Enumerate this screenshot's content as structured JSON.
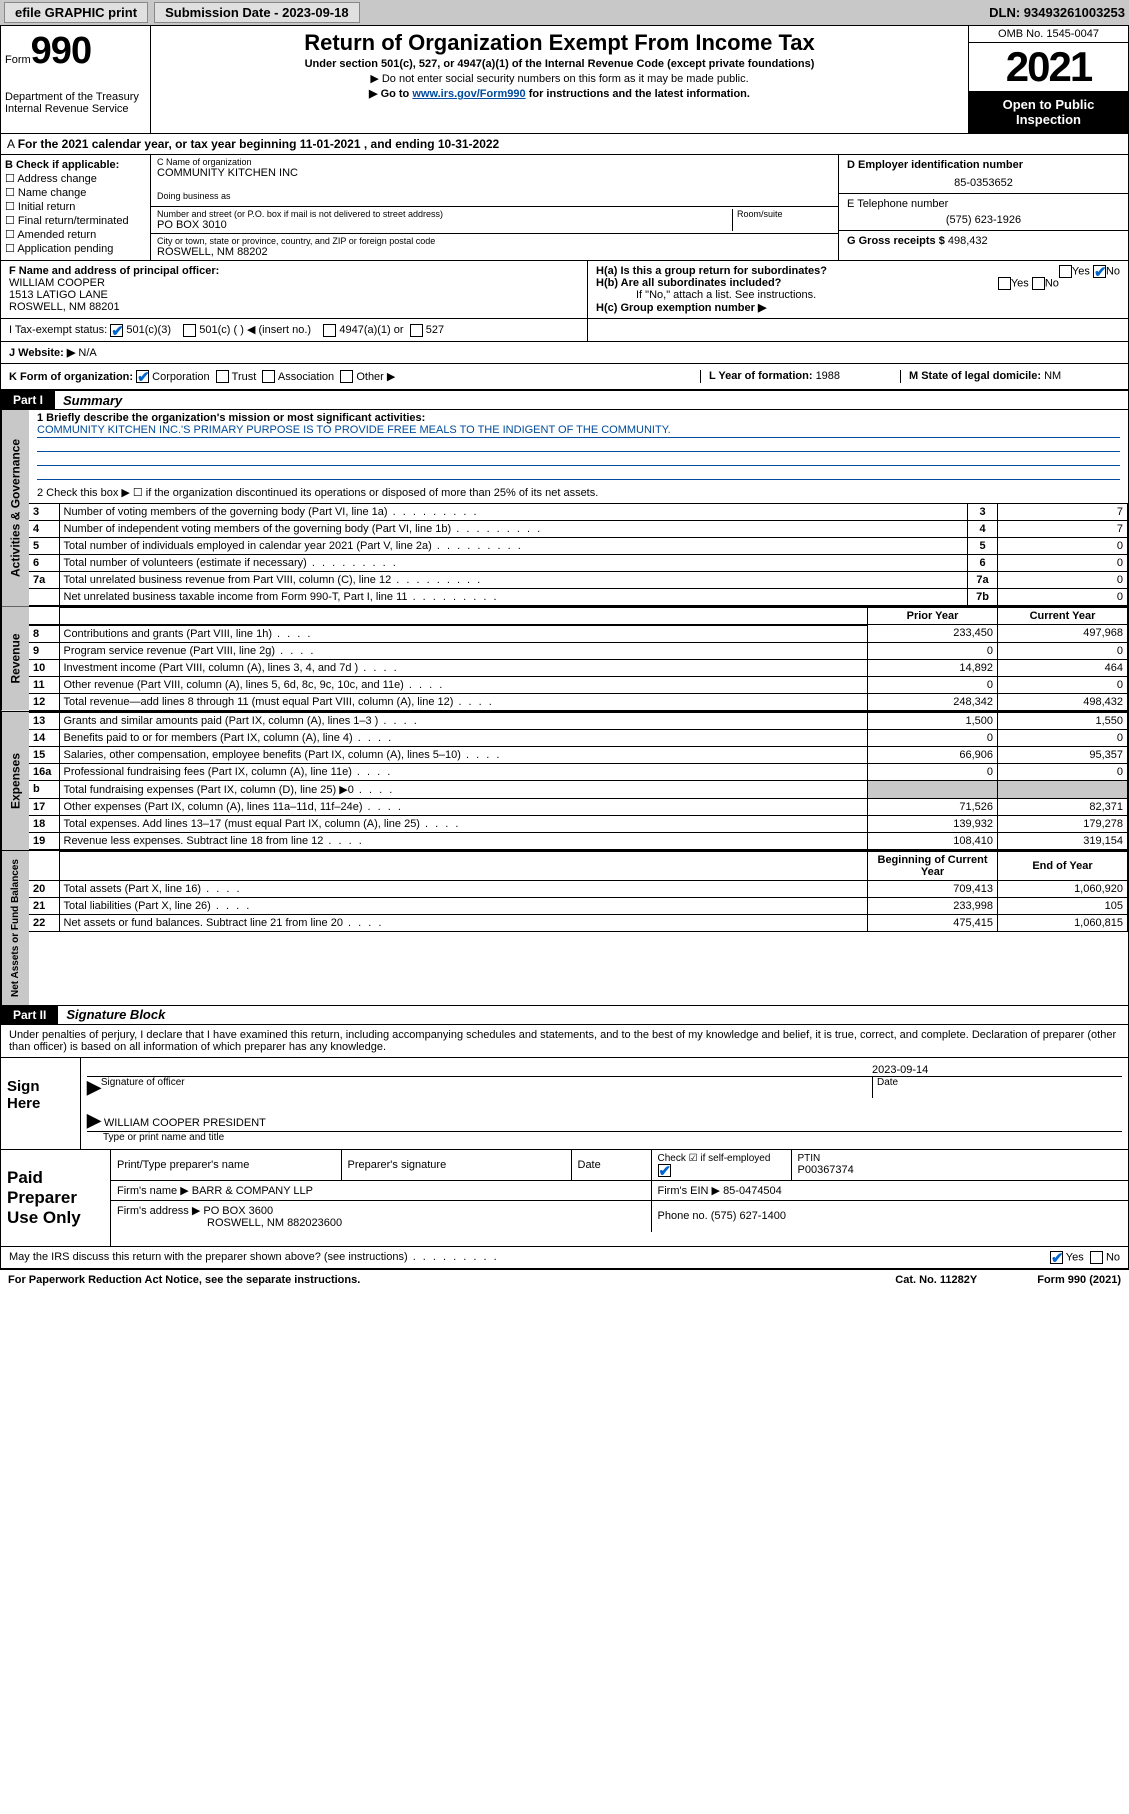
{
  "top_bar": {
    "efile": "efile GRAPHIC print",
    "submission_label": "Submission Date - 2023-09-18",
    "dln": "DLN: 93493261003253"
  },
  "header": {
    "form_prefix": "Form",
    "form_number": "990",
    "dept": "Department of the Treasury",
    "irs": "Internal Revenue Service",
    "title": "Return of Organization Exempt From Income Tax",
    "subtitle": "Under section 501(c), 527, or 4947(a)(1) of the Internal Revenue Code (except private foundations)",
    "note1": "▶ Do not enter social security numbers on this form as it may be made public.",
    "note2_pre": "▶ Go to ",
    "note2_link": "www.irs.gov/Form990",
    "note2_post": " for instructions and the latest information.",
    "omb": "OMB No. 1545-0047",
    "year": "2021",
    "open_public": "Open to Public Inspection"
  },
  "period": {
    "text": "For the 2021 calendar year, or tax year beginning 11-01-2021   , and ending 10-31-2022"
  },
  "section_b": {
    "label": "B Check if applicable:",
    "checks": [
      "Address change",
      "Name change",
      "Initial return",
      "Final return/terminated",
      "Amended return",
      "Application pending"
    ],
    "c_label": "C Name of organization",
    "org_name": "COMMUNITY KITCHEN INC",
    "dba_label": "Doing business as",
    "dba": "",
    "addr_label": "Number and street (or P.O. box if mail is not delivered to street address)",
    "room_label": "Room/suite",
    "addr": "PO BOX 3010",
    "city_label": "City or town, state or province, country, and ZIP or foreign postal code",
    "city": "ROSWELL, NM  88202",
    "d_label": "D Employer identification number",
    "ein": "85-0353652",
    "e_label": "E Telephone number",
    "phone": "(575) 623-1926",
    "g_label": "G Gross receipts $",
    "gross": "498,432"
  },
  "section_f": {
    "f_label": "F Name and address of principal officer:",
    "officer_name": "WILLIAM COOPER",
    "officer_addr1": "1513 LATIGO LANE",
    "officer_addr2": "ROSWELL, NM  88201",
    "ha_label": "H(a)  Is this a group return for subordinates?",
    "hb_label": "H(b)  Are all subordinates included?",
    "hb_note": "If \"No,\" attach a list. See instructions.",
    "hc_label": "H(c)  Group exemption number ▶",
    "yes": "Yes",
    "no": "No"
  },
  "section_i": {
    "label": "I    Tax-exempt status:",
    "opt1": "501(c)(3)",
    "opt2": "501(c) (  ) ◀ (insert no.)",
    "opt3": "4947(a)(1) or",
    "opt4": "527"
  },
  "section_j": {
    "label": "J   Website: ▶",
    "value": "N/A"
  },
  "section_k": {
    "label": "K Form of organization:",
    "opts": [
      "Corporation",
      "Trust",
      "Association",
      "Other ▶"
    ],
    "l_label": "L Year of formation: ",
    "l_val": "1988",
    "m_label": "M State of legal domicile: ",
    "m_val": "NM"
  },
  "part1": {
    "header": "Part I",
    "title": "Summary",
    "line1_label": "1  Briefly describe the organization's mission or most significant activities:",
    "mission": "COMMUNITY KITCHEN INC.'S PRIMARY PURPOSE IS TO PROVIDE FREE MEALS TO THE INDIGENT OF THE COMMUNITY.",
    "line2": "2   Check this box ▶ ☐  if the organization discontinued its operations or disposed of more than 25% of its net assets.",
    "governance_label": "Activities & Governance",
    "revenue_label": "Revenue",
    "expenses_label": "Expenses",
    "netassets_label": "Net Assets or Fund Balances",
    "rows_gov": [
      {
        "n": "3",
        "desc": "Number of voting members of the governing body (Part VI, line 1a)",
        "box": "3",
        "val": "7"
      },
      {
        "n": "4",
        "desc": "Number of independent voting members of the governing body (Part VI, line 1b)",
        "box": "4",
        "val": "7"
      },
      {
        "n": "5",
        "desc": "Total number of individuals employed in calendar year 2021 (Part V, line 2a)",
        "box": "5",
        "val": "0"
      },
      {
        "n": "6",
        "desc": "Total number of volunteers (estimate if necessary)",
        "box": "6",
        "val": "0"
      },
      {
        "n": "7a",
        "desc": "Total unrelated business revenue from Part VIII, column (C), line 12",
        "box": "7a",
        "val": "0"
      },
      {
        "n": "",
        "desc": "Net unrelated business taxable income from Form 990-T, Part I, line 11",
        "box": "7b",
        "val": "0"
      }
    ],
    "col_prior": "Prior Year",
    "col_current": "Current Year",
    "col_begin": "Beginning of Current Year",
    "col_end": "End of Year",
    "rows_rev": [
      {
        "n": "8",
        "desc": "Contributions and grants (Part VIII, line 1h)",
        "py": "233,450",
        "cy": "497,968"
      },
      {
        "n": "9",
        "desc": "Program service revenue (Part VIII, line 2g)",
        "py": "0",
        "cy": "0"
      },
      {
        "n": "10",
        "desc": "Investment income (Part VIII, column (A), lines 3, 4, and 7d )",
        "py": "14,892",
        "cy": "464"
      },
      {
        "n": "11",
        "desc": "Other revenue (Part VIII, column (A), lines 5, 6d, 8c, 9c, 10c, and 11e)",
        "py": "0",
        "cy": "0"
      },
      {
        "n": "12",
        "desc": "Total revenue—add lines 8 through 11 (must equal Part VIII, column (A), line 12)",
        "py": "248,342",
        "cy": "498,432"
      }
    ],
    "rows_exp": [
      {
        "n": "13",
        "desc": "Grants and similar amounts paid (Part IX, column (A), lines 1–3 )",
        "py": "1,500",
        "cy": "1,550"
      },
      {
        "n": "14",
        "desc": "Benefits paid to or for members (Part IX, column (A), line 4)",
        "py": "0",
        "cy": "0"
      },
      {
        "n": "15",
        "desc": "Salaries, other compensation, employee benefits (Part IX, column (A), lines 5–10)",
        "py": "66,906",
        "cy": "95,357"
      },
      {
        "n": "16a",
        "desc": "Professional fundraising fees (Part IX, column (A), line 11e)",
        "py": "0",
        "cy": "0"
      },
      {
        "n": "b",
        "desc": "Total fundraising expenses (Part IX, column (D), line 25) ▶0",
        "py": "",
        "cy": "",
        "grey": true
      },
      {
        "n": "17",
        "desc": "Other expenses (Part IX, column (A), lines 11a–11d, 11f–24e)",
        "py": "71,526",
        "cy": "82,371"
      },
      {
        "n": "18",
        "desc": "Total expenses. Add lines 13–17 (must equal Part IX, column (A), line 25)",
        "py": "139,932",
        "cy": "179,278"
      },
      {
        "n": "19",
        "desc": "Revenue less expenses. Subtract line 18 from line 12",
        "py": "108,410",
        "cy": "319,154"
      }
    ],
    "rows_net": [
      {
        "n": "20",
        "desc": "Total assets (Part X, line 16)",
        "py": "709,413",
        "cy": "1,060,920"
      },
      {
        "n": "21",
        "desc": "Total liabilities (Part X, line 26)",
        "py": "233,998",
        "cy": "105"
      },
      {
        "n": "22",
        "desc": "Net assets or fund balances. Subtract line 21 from line 20",
        "py": "475,415",
        "cy": "1,060,815"
      }
    ]
  },
  "part2": {
    "header": "Part II",
    "title": "Signature Block",
    "declaration": "Under penalties of perjury, I declare that I have examined this return, including accompanying schedules and statements, and to the best of my knowledge and belief, it is true, correct, and complete. Declaration of preparer (other than officer) is based on all information of which preparer has any knowledge.",
    "sign_here": "Sign Here",
    "sig_officer": "Signature of officer",
    "sig_date": "Date",
    "sig_date_val": "2023-09-14",
    "officer_printed": "WILLIAM COOPER  PRESIDENT",
    "officer_printed_label": "Type or print name and title",
    "paid_prep": "Paid Preparer Use Only",
    "prep_name_label": "Print/Type preparer's name",
    "prep_sig_label": "Preparer's signature",
    "prep_date_label": "Date",
    "prep_self": "Check ☑ if self-employed",
    "ptin_label": "PTIN",
    "ptin": "P00367374",
    "firm_name_label": "Firm's name    ▶",
    "firm_name": "BARR & COMPANY LLP",
    "firm_ein_label": "Firm's EIN ▶",
    "firm_ein": "85-0474504",
    "firm_addr_label": "Firm's address ▶",
    "firm_addr1": "PO BOX 3600",
    "firm_addr2": "ROSWELL, NM  882023600",
    "firm_phone_label": "Phone no.",
    "firm_phone": "(575) 627-1400",
    "discuss": "May the IRS discuss this return with the preparer shown above? (see instructions)"
  },
  "footer": {
    "paperwork": "For Paperwork Reduction Act Notice, see the separate instructions.",
    "cat": "Cat. No. 11282Y",
    "form": "Form 990 (2021)"
  },
  "colors": {
    "grey_bg": "#c8c8c8",
    "link_blue": "#004b9b",
    "check_blue": "#0066cc"
  }
}
